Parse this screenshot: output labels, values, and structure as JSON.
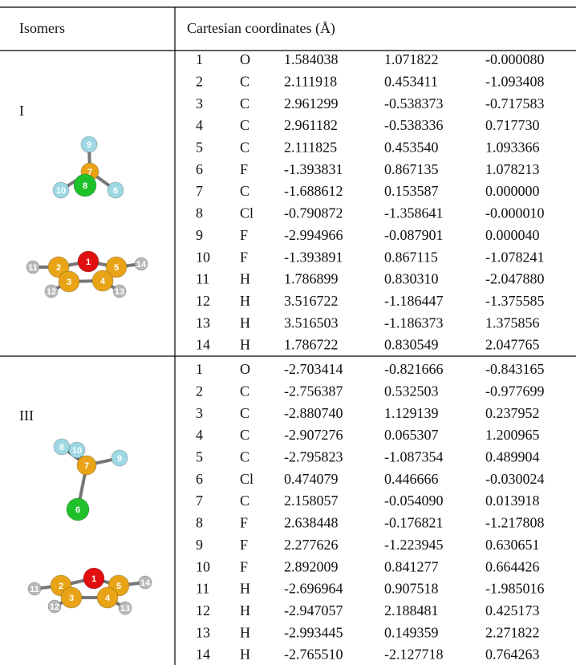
{
  "header": {
    "isomers": "Isomers",
    "coordinates": "Cartesian coordinates (Å)"
  },
  "sections": [
    {
      "name": "I",
      "rows": [
        [
          "1",
          "O",
          "1.584038",
          "1.071822",
          "-0.000080"
        ],
        [
          "2",
          "C",
          "2.111918",
          "0.453411",
          "-1.093408"
        ],
        [
          "3",
          "C",
          "2.961299",
          "-0.538373",
          "-0.717583"
        ],
        [
          "4",
          "C",
          "2.961182",
          "-0.538336",
          "0.717730"
        ],
        [
          "5",
          "C",
          "2.111825",
          "0.453540",
          "1.093366"
        ],
        [
          "6",
          "F",
          "-1.393831",
          "0.867135",
          "1.078213"
        ],
        [
          "7",
          "C",
          "-1.688612",
          "0.153587",
          "0.000000"
        ],
        [
          "8",
          "Cl",
          "-0.790872",
          "-1.358641",
          "-0.000010"
        ],
        [
          "9",
          "F",
          "-2.994966",
          "-0.087901",
          "0.000040"
        ],
        [
          "10",
          "F",
          "-1.393891",
          "0.867115",
          "-1.078241"
        ],
        [
          "11",
          "H",
          "1.786899",
          "0.830310",
          "-2.047880"
        ],
        [
          "12",
          "H",
          "3.516722",
          "-1.186447",
          "-1.375585"
        ],
        [
          "13",
          "H",
          "3.516503",
          "-1.186373",
          "1.375856"
        ],
        [
          "14",
          "H",
          "1.786722",
          "0.830549",
          "2.047765"
        ]
      ],
      "atoms": [
        {
          "label": "9",
          "color": "#9dd8e3"
        },
        {
          "label": "7",
          "color": "#e8a317"
        },
        {
          "label": "8",
          "color": "#1fc12b"
        },
        {
          "label": "10",
          "color": "#9dd8e3"
        },
        {
          "label": "6",
          "color": "#9dd8e3"
        },
        {
          "label": "11",
          "color": "#b8b8b8"
        },
        {
          "label": "14",
          "color": "#b8b8b8"
        },
        {
          "label": "12",
          "color": "#b8b8b8"
        },
        {
          "label": "13",
          "color": "#b8b8b8"
        },
        {
          "label": "2",
          "color": "#e8a317"
        },
        {
          "label": "5",
          "color": "#e8a317"
        },
        {
          "label": "3",
          "color": "#e8a317"
        },
        {
          "label": "4",
          "color": "#e8a317"
        },
        {
          "label": "1",
          "color": "#e01010"
        }
      ]
    },
    {
      "name": "III",
      "rows": [
        [
          "1",
          "O",
          "-2.703414",
          "-0.821666",
          "-0.843165"
        ],
        [
          "2",
          "C",
          "-2.756387",
          "0.532503",
          "-0.977699"
        ],
        [
          "3",
          "C",
          "-2.880740",
          "1.129139",
          "0.237952"
        ],
        [
          "4",
          "C",
          "-2.907276",
          "0.065307",
          "1.200965"
        ],
        [
          "5",
          "C",
          "-2.795823",
          "-1.087354",
          "0.489904"
        ],
        [
          "6",
          "Cl",
          "0.474079",
          "0.446666",
          "-0.030024"
        ],
        [
          "7",
          "C",
          "2.158057",
          "-0.054090",
          "0.013918"
        ],
        [
          "8",
          "F",
          "2.638448",
          "-0.176821",
          "-1.217808"
        ],
        [
          "9",
          "F",
          "2.277626",
          "-1.223945",
          "0.630651"
        ],
        [
          "10",
          "F",
          "2.892009",
          "0.841277",
          "0.664426"
        ],
        [
          "11",
          "H",
          "-2.696964",
          "0.907518",
          "-1.985016"
        ],
        [
          "12",
          "H",
          "-2.947057",
          "2.188481",
          "0.425173"
        ],
        [
          "13",
          "H",
          "-2.993445",
          "0.149359",
          "2.271822"
        ],
        [
          "14",
          "H",
          "-2.765510",
          "-2.127718",
          "0.764263"
        ]
      ],
      "atoms": [
        {
          "label": "8",
          "color": "#9dd8e3"
        },
        {
          "label": "10",
          "color": "#9dd8e3"
        },
        {
          "label": "9",
          "color": "#9dd8e3"
        },
        {
          "label": "6",
          "color": "#1fc12b"
        },
        {
          "label": "7",
          "color": "#e8a317"
        },
        {
          "label": "11",
          "color": "#b8b8b8"
        },
        {
          "label": "14",
          "color": "#b8b8b8"
        },
        {
          "label": "12",
          "color": "#b8b8b8"
        },
        {
          "label": "13",
          "color": "#b8b8b8"
        },
        {
          "label": "2",
          "color": "#e8a317"
        },
        {
          "label": "5",
          "color": "#e8a317"
        },
        {
          "label": "3",
          "color": "#e8a317"
        },
        {
          "label": "4",
          "color": "#e8a317"
        },
        {
          "label": "1",
          "color": "#e01010"
        }
      ]
    }
  ]
}
